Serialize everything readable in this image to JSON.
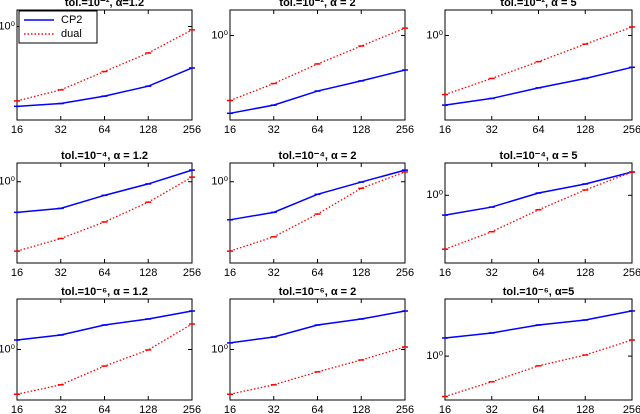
{
  "chart_data": [
    {
      "type": "line",
      "title": "tol.=10⁻², α=1.2",
      "x": [
        16,
        32,
        64,
        128,
        256
      ],
      "xlim": [
        16,
        256
      ],
      "xticks": [
        16,
        32,
        64,
        128,
        256
      ],
      "xscale": "log",
      "yscale": "log",
      "ylim": [
        0.1,
        1.5
      ],
      "yticks": [
        {
          "value": 1,
          "label": "10⁰"
        }
      ],
      "legend": "upper left",
      "series": [
        {
          "name": "CP2",
          "color": "#0000ff",
          "linestyle": "solid",
          "values": [
            0.14,
            0.15,
            0.18,
            0.23,
            0.36
          ]
        },
        {
          "name": "dual",
          "color": "#ff0000",
          "linestyle": "dotted",
          "values": [
            0.16,
            0.21,
            0.33,
            0.52,
            0.92
          ]
        }
      ]
    },
    {
      "type": "line",
      "title": "tol.=10⁻², α = 2",
      "x": [
        16,
        32,
        64,
        128,
        256
      ],
      "xlim": [
        16,
        256
      ],
      "xticks": [
        16,
        32,
        64,
        128,
        256
      ],
      "xscale": "log",
      "yscale": "log",
      "ylim": [
        0.1,
        2
      ],
      "yticks": [
        {
          "value": 1,
          "label": "10⁰"
        }
      ],
      "series": [
        {
          "name": "CP2",
          "color": "#0000ff",
          "linestyle": "solid",
          "values": [
            0.12,
            0.15,
            0.22,
            0.29,
            0.39
          ]
        },
        {
          "name": "dual",
          "color": "#ff0000",
          "linestyle": "dotted",
          "values": [
            0.17,
            0.27,
            0.46,
            0.75,
            1.22
          ]
        }
      ]
    },
    {
      "type": "line",
      "title": "tol.=10⁻², α = 5",
      "x": [
        16,
        32,
        64,
        128,
        256
      ],
      "xlim": [
        16,
        256
      ],
      "xticks": [
        16,
        32,
        64,
        128,
        256
      ],
      "xscale": "log",
      "yscale": "log",
      "ylim": [
        0.1,
        2
      ],
      "yticks": [
        {
          "value": 1,
          "label": "10⁰"
        }
      ],
      "series": [
        {
          "name": "CP2",
          "color": "#0000ff",
          "linestyle": "solid",
          "values": [
            0.15,
            0.18,
            0.24,
            0.31,
            0.42
          ]
        },
        {
          "name": "dual",
          "color": "#ff0000",
          "linestyle": "dotted",
          "values": [
            0.2,
            0.31,
            0.49,
            0.79,
            1.26
          ]
        }
      ]
    },
    {
      "type": "line",
      "title": "tol.=10⁻⁴, α = 1.2",
      "x": [
        16,
        32,
        64,
        128,
        256
      ],
      "xlim": [
        16,
        256
      ],
      "xticks": [
        16,
        32,
        64,
        128,
        256
      ],
      "xscale": "log",
      "yscale": "log",
      "ylim": [
        0.1,
        1.7
      ],
      "yticks": [
        {
          "value": 1,
          "label": "10⁰"
        }
      ],
      "series": [
        {
          "name": "CP2",
          "color": "#0000ff",
          "linestyle": "solid",
          "values": [
            0.42,
            0.47,
            0.68,
            0.94,
            1.39
          ]
        },
        {
          "name": "dual",
          "color": "#ff0000",
          "linestyle": "dotted",
          "values": [
            0.14,
            0.2,
            0.32,
            0.56,
            1.14
          ]
        }
      ]
    },
    {
      "type": "line",
      "title": "tol.=10⁻⁴, α = 2",
      "x": [
        16,
        32,
        64,
        128,
        256
      ],
      "xlim": [
        16,
        256
      ],
      "xticks": [
        16,
        32,
        64,
        128,
        256
      ],
      "xscale": "log",
      "yscale": "log",
      "ylim": [
        0.1,
        1.7
      ],
      "yticks": [
        {
          "value": 1,
          "label": "10⁰"
        }
      ],
      "series": [
        {
          "name": "CP2",
          "color": "#0000ff",
          "linestyle": "solid",
          "values": [
            0.34,
            0.42,
            0.7,
            0.99,
            1.39
          ]
        },
        {
          "name": "dual",
          "color": "#ff0000",
          "linestyle": "dotted",
          "values": [
            0.14,
            0.21,
            0.4,
            0.83,
            1.32
          ]
        }
      ]
    },
    {
      "type": "line",
      "title": "tol.=10⁻⁴, α = 5",
      "x": [
        16,
        32,
        64,
        128,
        256
      ],
      "xlim": [
        16,
        256
      ],
      "xticks": [
        16,
        32,
        64,
        128,
        256
      ],
      "xscale": "log",
      "yscale": "log",
      "ylim": [
        0.1,
        3
      ],
      "yticks": [
        {
          "value": 1,
          "label": "10⁰"
        }
      ],
      "series": [
        {
          "name": "CP2",
          "color": "#0000ff",
          "linestyle": "solid",
          "values": [
            0.51,
            0.67,
            1.08,
            1.47,
            2.21
          ]
        },
        {
          "name": "dual",
          "color": "#ff0000",
          "linestyle": "dotted",
          "values": [
            0.16,
            0.29,
            0.61,
            1.2,
            2.21
          ]
        }
      ]
    },
    {
      "type": "line",
      "title": "tol.=10⁻⁶, α = 1.2",
      "x": [
        16,
        32,
        64,
        128,
        256
      ],
      "xlim": [
        16,
        256
      ],
      "xticks": [
        16,
        32,
        64,
        128,
        256
      ],
      "xscale": "log",
      "yscale": "log",
      "ylim": [
        0.1,
        10
      ],
      "yticks": [
        {
          "value": 1,
          "label": "10⁰"
        }
      ],
      "series": [
        {
          "name": "CP2",
          "color": "#0000ff",
          "linestyle": "solid",
          "values": [
            1.54,
            1.94,
            3.05,
            4.02,
            5.78
          ]
        },
        {
          "name": "dual",
          "color": "#ff0000",
          "linestyle": "dotted",
          "values": [
            0.13,
            0.2,
            0.47,
            0.98,
            3.2
          ]
        }
      ]
    },
    {
      "type": "line",
      "title": "tol.=10⁻⁶, α = 2",
      "x": [
        16,
        32,
        64,
        128,
        256
      ],
      "xlim": [
        16,
        256
      ],
      "xticks": [
        16,
        32,
        64,
        128,
        256
      ],
      "xscale": "log",
      "yscale": "log",
      "ylim": [
        0.1,
        10
      ],
      "yticks": [
        {
          "value": 1,
          "label": "10⁰"
        }
      ],
      "series": [
        {
          "name": "CP2",
          "color": "#0000ff",
          "linestyle": "solid",
          "values": [
            1.35,
            1.77,
            3.05,
            4.02,
            5.78
          ]
        },
        {
          "name": "dual",
          "color": "#ff0000",
          "linestyle": "dotted",
          "values": [
            0.13,
            0.2,
            0.36,
            0.62,
            1.12
          ]
        }
      ]
    },
    {
      "type": "line",
      "title": "tol.=10⁻⁶, α=5",
      "x": [
        16,
        32,
        64,
        128,
        256
      ],
      "xlim": [
        16,
        256
      ],
      "xticks": [
        16,
        32,
        64,
        128,
        256
      ],
      "xscale": "log",
      "yscale": "log",
      "ylim": [
        0.1,
        20
      ],
      "yticks": [
        {
          "value": 1,
          "label": "10⁰"
        }
      ],
      "series": [
        {
          "name": "CP2",
          "color": "#0000ff",
          "linestyle": "solid",
          "values": [
            2.59,
            3.37,
            5.12,
            6.65,
            10.7
          ]
        },
        {
          "name": "dual",
          "color": "#ff0000",
          "linestyle": "dotted",
          "values": [
            0.12,
            0.26,
            0.6,
            1.06,
            2.33
          ]
        }
      ]
    }
  ]
}
